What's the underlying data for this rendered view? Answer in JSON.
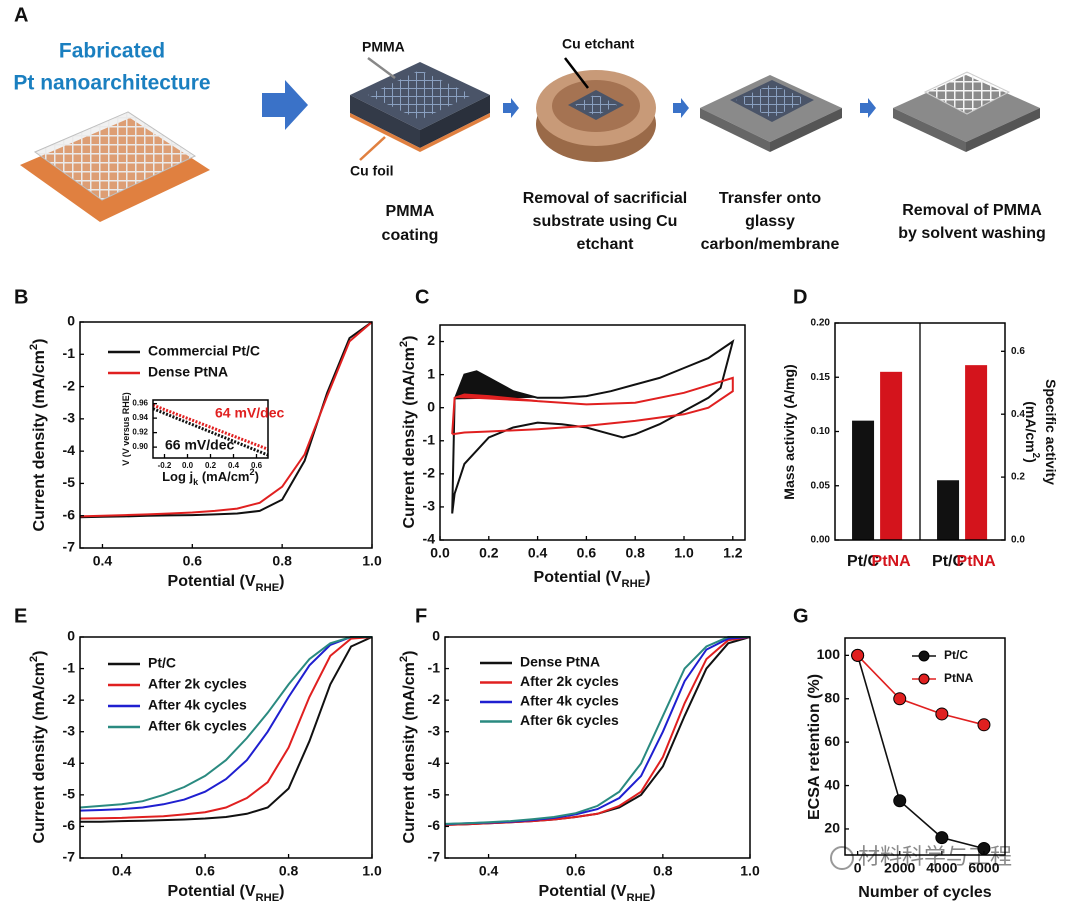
{
  "panel_a": {
    "label": "A",
    "title": [
      "Fabricated",
      "Pt nanoarchitecture"
    ],
    "callouts": {
      "pmma": "PMMA",
      "cu_foil": "Cu foil",
      "cu_etchant": "Cu etchant"
    },
    "steps": [
      [
        "PMMA",
        "coating"
      ],
      [
        "Removal of sacrificial",
        "substrate using Cu",
        "etchant"
      ],
      [
        "Transfer onto",
        "glassy",
        "carbon/membrane"
      ],
      [
        "Removal of PMMA",
        "by solvent washing"
      ]
    ]
  },
  "watermark": "材料科学与工程",
  "chart_data": [
    {
      "type": "line",
      "panel": "B",
      "xlabel": [
        "Potential (V",
        {
          "sub": "RHE"
        },
        ")"
      ],
      "ylabel": [
        "Current density (mA/cm",
        {
          "sup": "2"
        },
        ")"
      ],
      "xlim": [
        0.35,
        1.0
      ],
      "xticks": [
        0.4,
        0.6,
        0.8,
        {
          "value": 1.0,
          "label": "1.0"
        }
      ],
      "ylim": [
        -7,
        0
      ],
      "yticks": [
        0,
        -1,
        -2,
        -3,
        -4,
        -5,
        -6,
        -7
      ],
      "x": [
        0.35,
        0.4,
        0.45,
        0.5,
        0.55,
        0.6,
        0.65,
        0.7,
        0.75,
        0.8,
        0.85,
        0.9,
        0.95,
        1.0
      ],
      "series": [
        {
          "name": "Commercial Pt/C",
          "color": "#111111",
          "values": [
            -6.05,
            -6.03,
            -6.02,
            -6.0,
            -5.99,
            -5.98,
            -5.96,
            -5.93,
            -5.85,
            -5.5,
            -4.3,
            -2.2,
            -0.5,
            0
          ]
        },
        {
          "name": "Dense PtNA",
          "color": "#e02020",
          "values": [
            -6.02,
            -6.0,
            -5.98,
            -5.96,
            -5.93,
            -5.9,
            -5.85,
            -5.78,
            -5.6,
            -5.1,
            -4.1,
            -2.3,
            -0.6,
            0
          ]
        }
      ],
      "inset": {
        "xlabel": [
          "Log j",
          {
            "sub": "k"
          },
          " (mA/cm",
          {
            "sup": "2"
          },
          ")"
        ],
        "ylabel": [
          "V (V versus RHE)"
        ],
        "xlim": [
          -0.3,
          0.7
        ],
        "xticks": [
          -0.2,
          {
            "value": 0.0,
            "label": "0.0"
          },
          0.2,
          0.4,
          0.6
        ],
        "ylim": [
          0.885,
          0.965
        ],
        "yticks": [
          {
            "value": 0.9,
            "label": "0.90"
          },
          {
            "value": 0.92,
            "label": "0.92"
          },
          {
            "value": 0.94,
            "label": "0.94"
          },
          {
            "value": 0.96,
            "label": "0.96"
          }
        ],
        "x": [
          -0.3,
          0.7
        ],
        "series": [
          {
            "color": "#111111",
            "values": [
              0.953,
              0.889
            ]
          },
          {
            "color": "#e02020",
            "values": [
              0.958,
              0.897
            ]
          }
        ],
        "annotations": [
          {
            "text": "64 mV/dec",
            "color": "#e02020"
          },
          {
            "text": "66 mV/dec",
            "color": "#111111"
          }
        ]
      }
    },
    {
      "type": "line",
      "panel": "C",
      "xlabel": [
        "Potential (V",
        {
          "sub": "RHE"
        },
        ")"
      ],
      "ylabel": [
        "Current density (mA/cm",
        {
          "sup": "2"
        },
        ")"
      ],
      "xlim": [
        0,
        1.25
      ],
      "xticks": [
        {
          "value": 0.0,
          "label": "0.0"
        },
        0.2,
        0.4,
        0.6,
        0.8,
        {
          "value": 1.0,
          "label": "1.0"
        },
        1.2
      ],
      "ylim": [
        -4,
        2.5
      ],
      "yticks": [
        -4,
        -3,
        -2,
        -1,
        0,
        1,
        2
      ],
      "series": [
        {
          "color": "#111111",
          "fill": true,
          "x": [
            0.05,
            0.06,
            0.1,
            0.15,
            0.2,
            0.3,
            0.4,
            0.5,
            0.6,
            0.7,
            0.8,
            0.9,
            1.0,
            1.1,
            1.2,
            1.15,
            1.1,
            1.0,
            0.9,
            0.8,
            0.75,
            0.7,
            0.6,
            0.5,
            0.4,
            0.3,
            0.2,
            0.1,
            0.06,
            0.05
          ],
          "values": [
            -3.2,
            0.25,
            1.0,
            1.1,
            0.9,
            0.5,
            0.3,
            0.3,
            0.35,
            0.5,
            0.7,
            0.9,
            1.2,
            1.5,
            2.0,
            0.6,
            0.3,
            -0.1,
            -0.5,
            -0.8,
            -0.9,
            -0.8,
            -0.6,
            -0.5,
            -0.45,
            -0.6,
            -0.9,
            -1.7,
            -2.6,
            -3.2
          ]
        },
        {
          "color": "#e02020",
          "fill": true,
          "x": [
            0.05,
            0.06,
            0.1,
            0.2,
            0.4,
            0.6,
            0.8,
            1.0,
            1.2,
            1.2,
            1.1,
            1.0,
            0.8,
            0.6,
            0.4,
            0.2,
            0.1,
            0.05
          ],
          "values": [
            -0.8,
            0.3,
            0.4,
            0.35,
            0.2,
            0.1,
            0.15,
            0.45,
            0.9,
            0.5,
            0.0,
            -0.2,
            -0.4,
            -0.55,
            -0.65,
            -0.72,
            -0.75,
            -0.8
          ]
        }
      ]
    },
    {
      "type": "bar",
      "panel": "D",
      "colors": [
        "#111111",
        "#d4141c"
      ],
      "panels": [
        {
          "ylabel": [
            "Mass activity (A/mg)"
          ],
          "categories": [
            "Pt/C",
            "PtNA"
          ],
          "values": [
            0.11,
            0.155
          ],
          "ylim": [
            0,
            0.2
          ],
          "yticks": [
            {
              "value": 0,
              "label": "0.00"
            },
            0.05,
            {
              "value": 0.1,
              "label": "0.10"
            },
            0.15,
            {
              "value": 0.2,
              "label": "0.20"
            }
          ]
        },
        {
          "ylabel": [
            [
              "Specific activity"
            ],
            [
              "(mA/cm",
              {
                "sup": "2"
              },
              ")"
            ]
          ],
          "categories": [
            "Pt/C",
            "PtNA"
          ],
          "values": [
            0.19,
            0.556
          ],
          "ylim": [
            0,
            0.69
          ],
          "yticks": [
            {
              "value": 0,
              "label": "0.0"
            },
            0.2,
            0.4,
            0.6
          ]
        }
      ]
    },
    {
      "type": "line",
      "panel": "E",
      "xlabel": [
        "Potential (V",
        {
          "sub": "RHE"
        },
        ")"
      ],
      "ylabel": [
        "Current density (mA/cm",
        {
          "sup": "2"
        },
        ")"
      ],
      "xlim": [
        0.3,
        1.0
      ],
      "xticks": [
        0.4,
        0.6,
        0.8,
        {
          "value": 1.0,
          "label": "1.0"
        }
      ],
      "ylim": [
        -7,
        0
      ],
      "yticks": [
        0,
        -1,
        -2,
        -3,
        -4,
        -5,
        -6,
        -7
      ],
      "x": [
        0.3,
        0.35,
        0.4,
        0.45,
        0.5,
        0.55,
        0.6,
        0.65,
        0.7,
        0.75,
        0.8,
        0.85,
        0.9,
        0.95,
        1.0
      ],
      "series": [
        {
          "name": "Pt/C",
          "color": "#111111",
          "values": [
            -5.85,
            -5.85,
            -5.83,
            -5.82,
            -5.8,
            -5.78,
            -5.75,
            -5.7,
            -5.6,
            -5.4,
            -4.8,
            -3.3,
            -1.5,
            -0.3,
            0
          ]
        },
        {
          "name": "After 2k cycles",
          "color": "#e02020",
          "values": [
            -5.75,
            -5.74,
            -5.73,
            -5.7,
            -5.68,
            -5.62,
            -5.55,
            -5.4,
            -5.1,
            -4.6,
            -3.5,
            -1.9,
            -0.6,
            -0.05,
            0
          ]
        },
        {
          "name": "After 4k cycles",
          "color": "#1f1fd0",
          "values": [
            -5.5,
            -5.48,
            -5.45,
            -5.4,
            -5.3,
            -5.15,
            -4.9,
            -4.5,
            -3.9,
            -3.0,
            -1.9,
            -0.9,
            -0.25,
            0,
            0
          ]
        },
        {
          "name": "After 6k cycles",
          "color": "#2a8a80",
          "values": [
            -5.4,
            -5.35,
            -5.3,
            -5.2,
            -5.0,
            -4.75,
            -4.4,
            -3.9,
            -3.2,
            -2.4,
            -1.5,
            -0.7,
            -0.2,
            0,
            0
          ]
        }
      ]
    },
    {
      "type": "line",
      "panel": "F",
      "xlabel": [
        "Potential (V",
        {
          "sub": "RHE"
        },
        ")"
      ],
      "ylabel": [
        "Current density (mA/cm",
        {
          "sup": "2"
        },
        ")"
      ],
      "xlim": [
        0.3,
        1.0
      ],
      "xticks": [
        0.4,
        0.6,
        0.8,
        {
          "value": 1.0,
          "label": "1.0"
        }
      ],
      "ylim": [
        -7,
        0
      ],
      "yticks": [
        0,
        -1,
        -2,
        -3,
        -4,
        -5,
        -6,
        -7
      ],
      "x": [
        0.3,
        0.35,
        0.4,
        0.45,
        0.5,
        0.55,
        0.6,
        0.65,
        0.7,
        0.75,
        0.8,
        0.85,
        0.9,
        0.95,
        1.0
      ],
      "series": [
        {
          "name": "Dense PtNA",
          "color": "#111111",
          "values": [
            -5.95,
            -5.93,
            -5.9,
            -5.87,
            -5.83,
            -5.78,
            -5.7,
            -5.6,
            -5.4,
            -5.0,
            -4.1,
            -2.5,
            -1.0,
            -0.2,
            0
          ]
        },
        {
          "name": "After 2k cycles",
          "color": "#e02020",
          "values": [
            -5.95,
            -5.93,
            -5.9,
            -5.87,
            -5.83,
            -5.78,
            -5.7,
            -5.6,
            -5.35,
            -4.9,
            -3.8,
            -2.1,
            -0.7,
            -0.1,
            0
          ]
        },
        {
          "name": "After 4k cycles",
          "color": "#1f1fd0",
          "values": [
            -5.93,
            -5.9,
            -5.88,
            -5.85,
            -5.8,
            -5.73,
            -5.62,
            -5.45,
            -5.1,
            -4.4,
            -3.0,
            -1.4,
            -0.4,
            -0.05,
            0
          ]
        },
        {
          "name": "After 6k cycles",
          "color": "#2a8a80",
          "values": [
            -5.92,
            -5.9,
            -5.87,
            -5.83,
            -5.77,
            -5.7,
            -5.58,
            -5.35,
            -4.9,
            -4.0,
            -2.5,
            -1.0,
            -0.3,
            0,
            0
          ]
        }
      ]
    },
    {
      "type": "line",
      "panel": "G",
      "markers": true,
      "xlabel": [
        "Number of cycles"
      ],
      "ylabel": [
        "ECSA retention (%)"
      ],
      "xlim": [
        -600,
        7000
      ],
      "xticks": [
        0,
        2000,
        4000,
        6000
      ],
      "ylim": [
        8,
        108
      ],
      "yticks": [
        20,
        40,
        60,
        80,
        100
      ],
      "x": [
        0,
        2000,
        4000,
        6000
      ],
      "series": [
        {
          "name": "Pt/C",
          "color": "#111111",
          "values": [
            100,
            33,
            16,
            11
          ]
        },
        {
          "name": "PtNA",
          "color": "#e02020",
          "values": [
            100,
            80,
            73,
            68
          ]
        }
      ]
    }
  ]
}
